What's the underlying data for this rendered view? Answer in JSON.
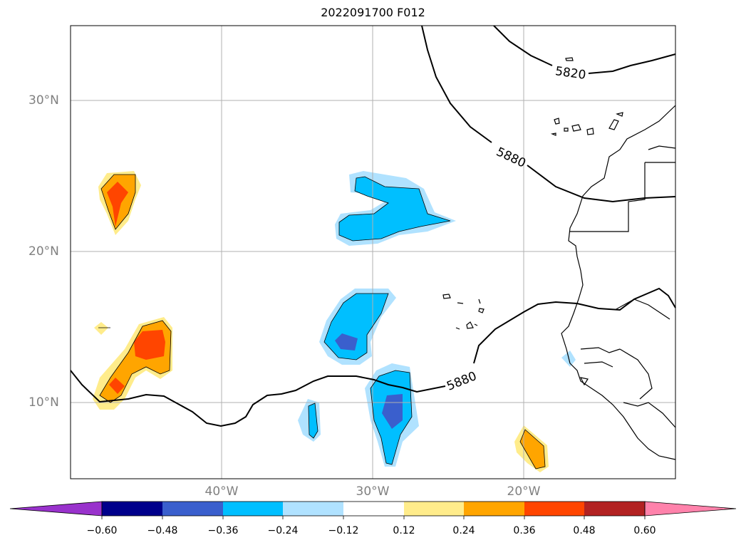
{
  "title": "2022091700 F012",
  "map": {
    "lat_labels": [
      "30°N",
      "20°N",
      "10°N"
    ],
    "lon_labels": [
      "40°W",
      "30°W",
      "20°W"
    ],
    "contour_labels": [
      "5820",
      "5880",
      "5880"
    ]
  },
  "colorbar": {
    "ticks": [
      "−0.60",
      "−0.48",
      "−0.36",
      "−0.24",
      "−0.12",
      "0.12",
      "0.24",
      "0.36",
      "0.48",
      "0.60"
    ],
    "colors": [
      "#9932cc",
      "#00008b",
      "#3a5fcd",
      "#00bfff",
      "#b0e2ff",
      "#ffffff",
      "#ffec8b",
      "#ffa500",
      "#ff4500",
      "#b22222",
      "#ff82ab"
    ]
  }
}
